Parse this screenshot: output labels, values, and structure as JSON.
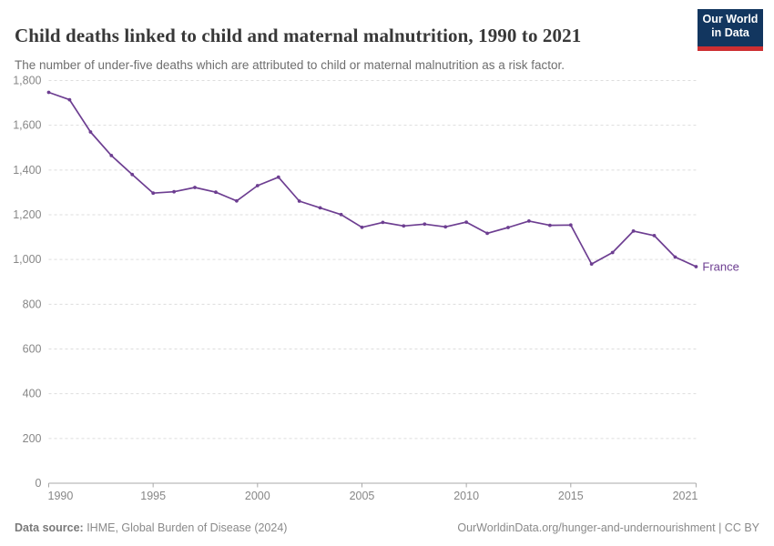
{
  "header": {
    "title": "Child deaths linked to child and maternal malnutrition, 1990 to 2021",
    "subtitle": "The number of under-five deaths which are attributed to child or maternal malnutrition as a risk factor."
  },
  "logo": {
    "line1": "Our World",
    "line2": "in Data"
  },
  "chart_data": {
    "type": "line",
    "title": "Child deaths linked to child and maternal malnutrition, 1990 to 2021",
    "xlabel": "",
    "ylabel": "",
    "xlim": [
      1990,
      2021
    ],
    "ylim": [
      0,
      1800
    ],
    "yticks": [
      0,
      200,
      400,
      600,
      800,
      1000,
      1200,
      1400,
      1600,
      1800
    ],
    "xticks": [
      1990,
      1995,
      2000,
      2005,
      2010,
      2015,
      2021
    ],
    "grid": "horizontal-dashed",
    "legend_position": "end-of-line",
    "series": [
      {
        "name": "France",
        "color": "#6d3e91",
        "x": [
          1990,
          1991,
          1992,
          1993,
          1994,
          1995,
          1996,
          1997,
          1998,
          1999,
          2000,
          2001,
          2002,
          2003,
          2004,
          2005,
          2006,
          2007,
          2008,
          2009,
          2010,
          2011,
          2012,
          2013,
          2014,
          2015,
          2016,
          2017,
          2018,
          2019,
          2020,
          2021
        ],
        "values": [
          1747,
          1714,
          1570,
          1465,
          1380,
          1297,
          1303,
          1322,
          1301,
          1262,
          1330,
          1368,
          1261,
          1231,
          1201,
          1144,
          1166,
          1150,
          1158,
          1146,
          1167,
          1117,
          1143,
          1172,
          1153,
          1154,
          980,
          1031,
          1127,
          1107,
          1011,
          968
        ]
      }
    ]
  },
  "footer": {
    "source_label": "Data source:",
    "source_text": " IHME, Global Burden of Disease (2024)",
    "attribution": "OurWorldinData.org/hunger-and-undernourishment | CC BY"
  },
  "colors": {
    "line": "#6d3e91",
    "grid": "#dddddd",
    "axis": "#a8a8a8",
    "tick_label": "#878787",
    "logo_bg": "#12365f",
    "logo_stripe": "#cd2f32"
  }
}
